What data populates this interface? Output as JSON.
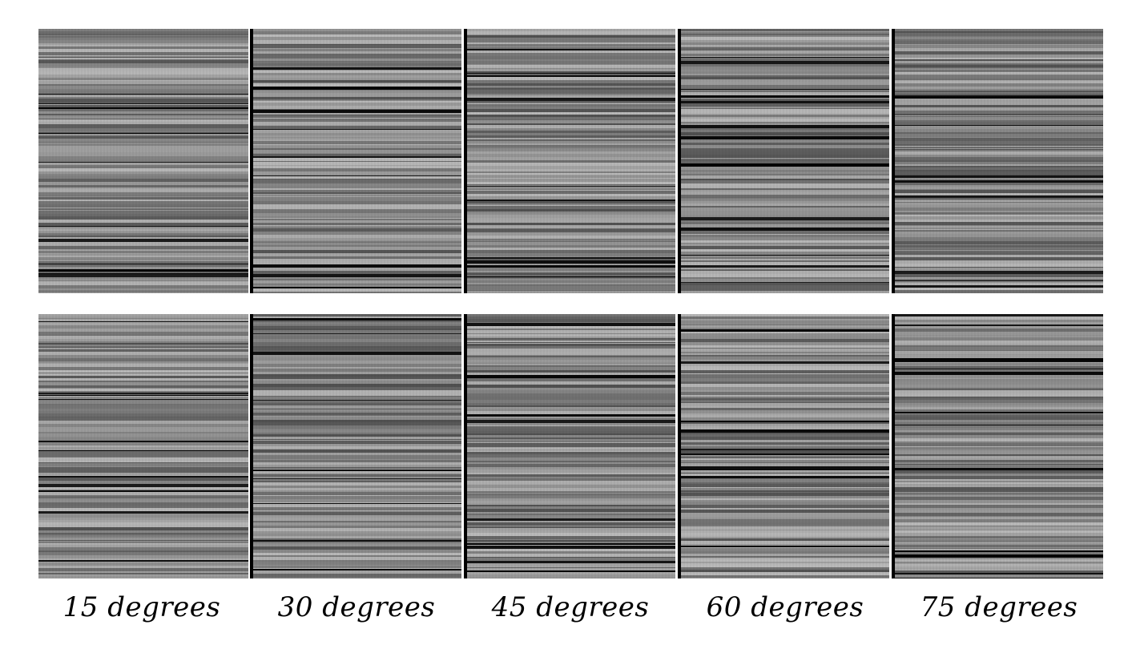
{
  "figure": {
    "columns": [
      {
        "label": "15 degrees"
      },
      {
        "label": "30 degrees"
      },
      {
        "label": "45 degrees"
      },
      {
        "label": "60 degrees"
      },
      {
        "label": "75 degrees"
      }
    ],
    "rows": 2,
    "palette": {
      "background": "#ffffff",
      "separator": "#000000",
      "stripe_dark": "#000000",
      "stripe_light": "#ffffff"
    }
  }
}
